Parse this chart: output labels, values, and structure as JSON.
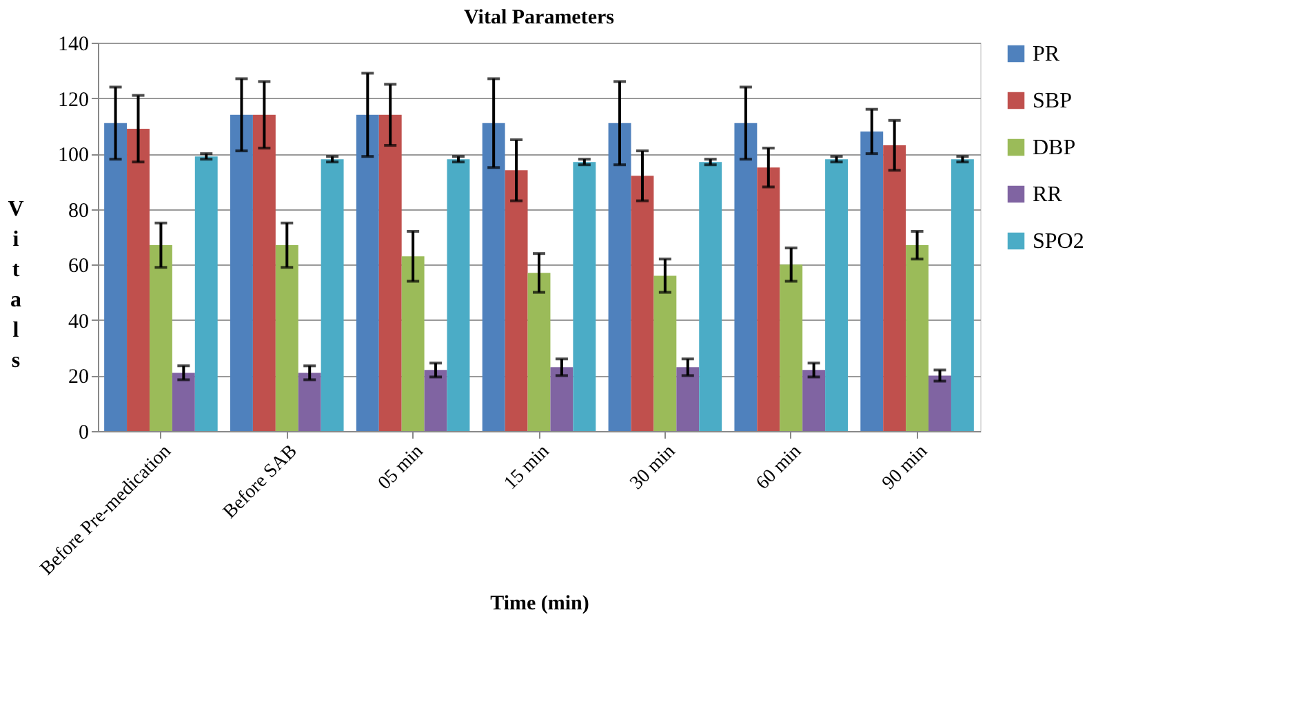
{
  "chart_data": {
    "type": "bar",
    "title": "Vital Parameters",
    "xlabel": "Time (min)",
    "ylabel": "Vitals",
    "categories": [
      "Before Pre-medication",
      "Before SAB",
      "05 min",
      "15 min",
      "30 min",
      "60 min",
      "90 min"
    ],
    "series": [
      {
        "name": "PR",
        "color": "#4f81bd",
        "values": [
          111,
          114,
          114,
          111,
          111,
          111,
          108
        ],
        "errors": [
          13,
          13,
          15,
          16,
          15,
          13,
          8
        ]
      },
      {
        "name": "SBP",
        "color": "#c0504d",
        "values": [
          109,
          114,
          114,
          94,
          92,
          95,
          103
        ],
        "errors": [
          12,
          12,
          11,
          11,
          9,
          7,
          9
        ]
      },
      {
        "name": "DBP",
        "color": "#9bbb59",
        "values": [
          67,
          67,
          63,
          57,
          56,
          60,
          67
        ],
        "errors": [
          8,
          8,
          9,
          7,
          6,
          6,
          5
        ]
      },
      {
        "name": "RR",
        "color": "#8064a2",
        "values": [
          21,
          21,
          22,
          23,
          23,
          22,
          20
        ],
        "errors": [
          2.5,
          2.5,
          2.5,
          3,
          3,
          2.5,
          2
        ]
      },
      {
        "name": "SPO2",
        "color": "#4bacc6",
        "values": [
          99,
          98,
          98,
          97,
          97,
          98,
          98
        ],
        "errors": [
          1,
          1,
          1,
          1,
          1,
          1,
          1
        ]
      }
    ],
    "ylim": [
      0,
      140
    ],
    "yticks": [
      0,
      20,
      40,
      60,
      80,
      100,
      120,
      140
    ],
    "grid": "y",
    "legend": "right"
  }
}
